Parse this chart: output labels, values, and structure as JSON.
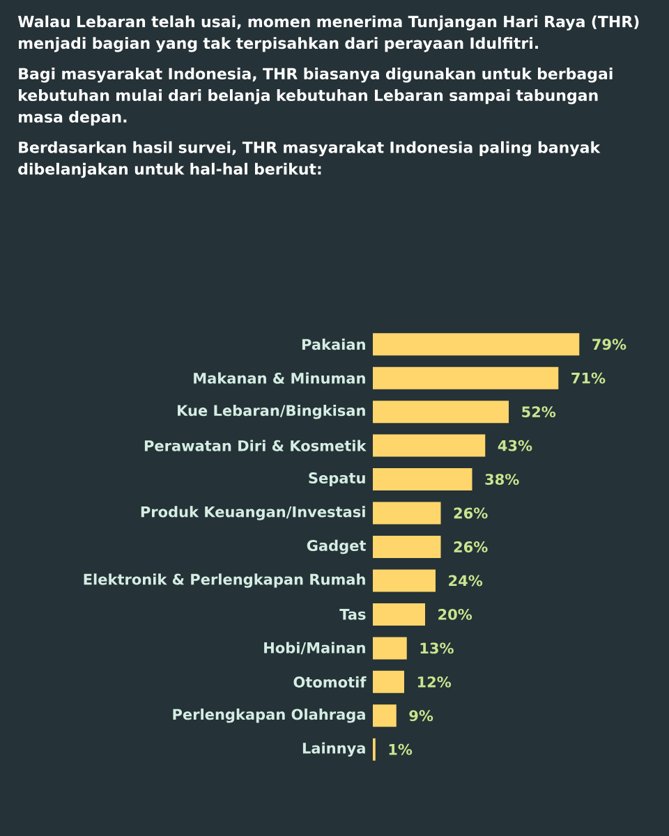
{
  "chart_data": {
    "type": "bar",
    "orientation": "horizontal",
    "title": "Walau Lebaran telah usai, momen menerima Tunjangan Hari Raya (THR) menjadi bagian yang tak terpisahkan dari perayaan Idulfitri.",
    "subtitle": "Bagi masyarakat Indonesia, THR biasanya digunakan untuk berbagai kebutuhan mulai dari belanja kebutuhan Lebaran sampai tabungan masa depan.",
    "annotations": [
      "Berdasarkan hasil survei, THR masyarakat Indonesia paling banyak dibelanjakan untuk hal-hal berikut:"
    ],
    "categories": [
      "Pakaian",
      "Makanan & Minuman",
      "Kue Lebaran/Bingkisan",
      "Perawatan Diri & Kosmetik",
      "Sepatu",
      "Produk Keuangan/Investasi",
      "Gadget",
      "Elektronik & Perlengkapan Rumah",
      "Tas",
      "Hobi/Mainan",
      "Otomotif",
      "Perlengkapan Olahraga",
      "Lainnya"
    ],
    "values": [
      79,
      71,
      52,
      43,
      38,
      26,
      26,
      24,
      20,
      13,
      12,
      9,
      1
    ],
    "value_labels": [
      "79%",
      "71%",
      "52%",
      "43%",
      "38%",
      "26%",
      "26%",
      "24%",
      "20%",
      "13%",
      "12%",
      "9%",
      "1%"
    ],
    "color": "#ffd66b"
  }
}
